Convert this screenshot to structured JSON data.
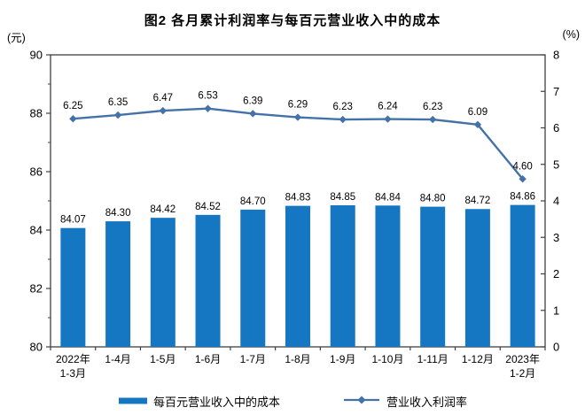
{
  "title": "图2 各月累计利润率与每百元营业收入中的成本",
  "left_axis_unit": "(元)",
  "right_axis_unit": "(%)",
  "colors": {
    "bar": "#1577C2",
    "line": "#4472A8",
    "axis": "#404040",
    "text": "#000000"
  },
  "chart_data": {
    "type": "combo-bar-line",
    "title": "图2 各月累计利润率与每百元营业收入中的成本",
    "categories": [
      [
        "2022年",
        "1-3月"
      ],
      [
        "1-4月"
      ],
      [
        "1-5月"
      ],
      [
        "1-6月"
      ],
      [
        "1-7月"
      ],
      [
        "1-8月"
      ],
      [
        "1-9月"
      ],
      [
        "1-10月"
      ],
      [
        "1-11月"
      ],
      [
        "1-12月"
      ],
      [
        "2023年",
        "1-2月"
      ]
    ],
    "series": [
      {
        "name": "每百元营业收入中的成本",
        "type": "bar",
        "axis": "left",
        "color": "#1577C2",
        "values": [
          84.07,
          84.3,
          84.42,
          84.52,
          84.7,
          84.83,
          84.85,
          84.84,
          84.8,
          84.72,
          84.86
        ]
      },
      {
        "name": "营业收入利润率",
        "type": "line",
        "axis": "right",
        "color": "#4472A8",
        "marker": "diamond",
        "values": [
          6.25,
          6.35,
          6.47,
          6.53,
          6.39,
          6.29,
          6.23,
          6.24,
          6.23,
          6.09,
          4.6
        ]
      }
    ],
    "left_axis": {
      "unit": "(元)",
      "min": 80,
      "max": 90,
      "major_ticks": [
        80,
        82,
        84,
        86,
        88,
        90
      ],
      "minor_ticks": [
        81,
        83,
        85,
        87,
        89
      ]
    },
    "right_axis": {
      "unit": "(%)",
      "min": 0,
      "max": 8,
      "major_ticks": [
        0,
        1,
        2,
        3,
        4,
        5,
        6,
        7,
        8
      ]
    },
    "grid": false,
    "data_labels": true,
    "legend_position": "bottom"
  }
}
